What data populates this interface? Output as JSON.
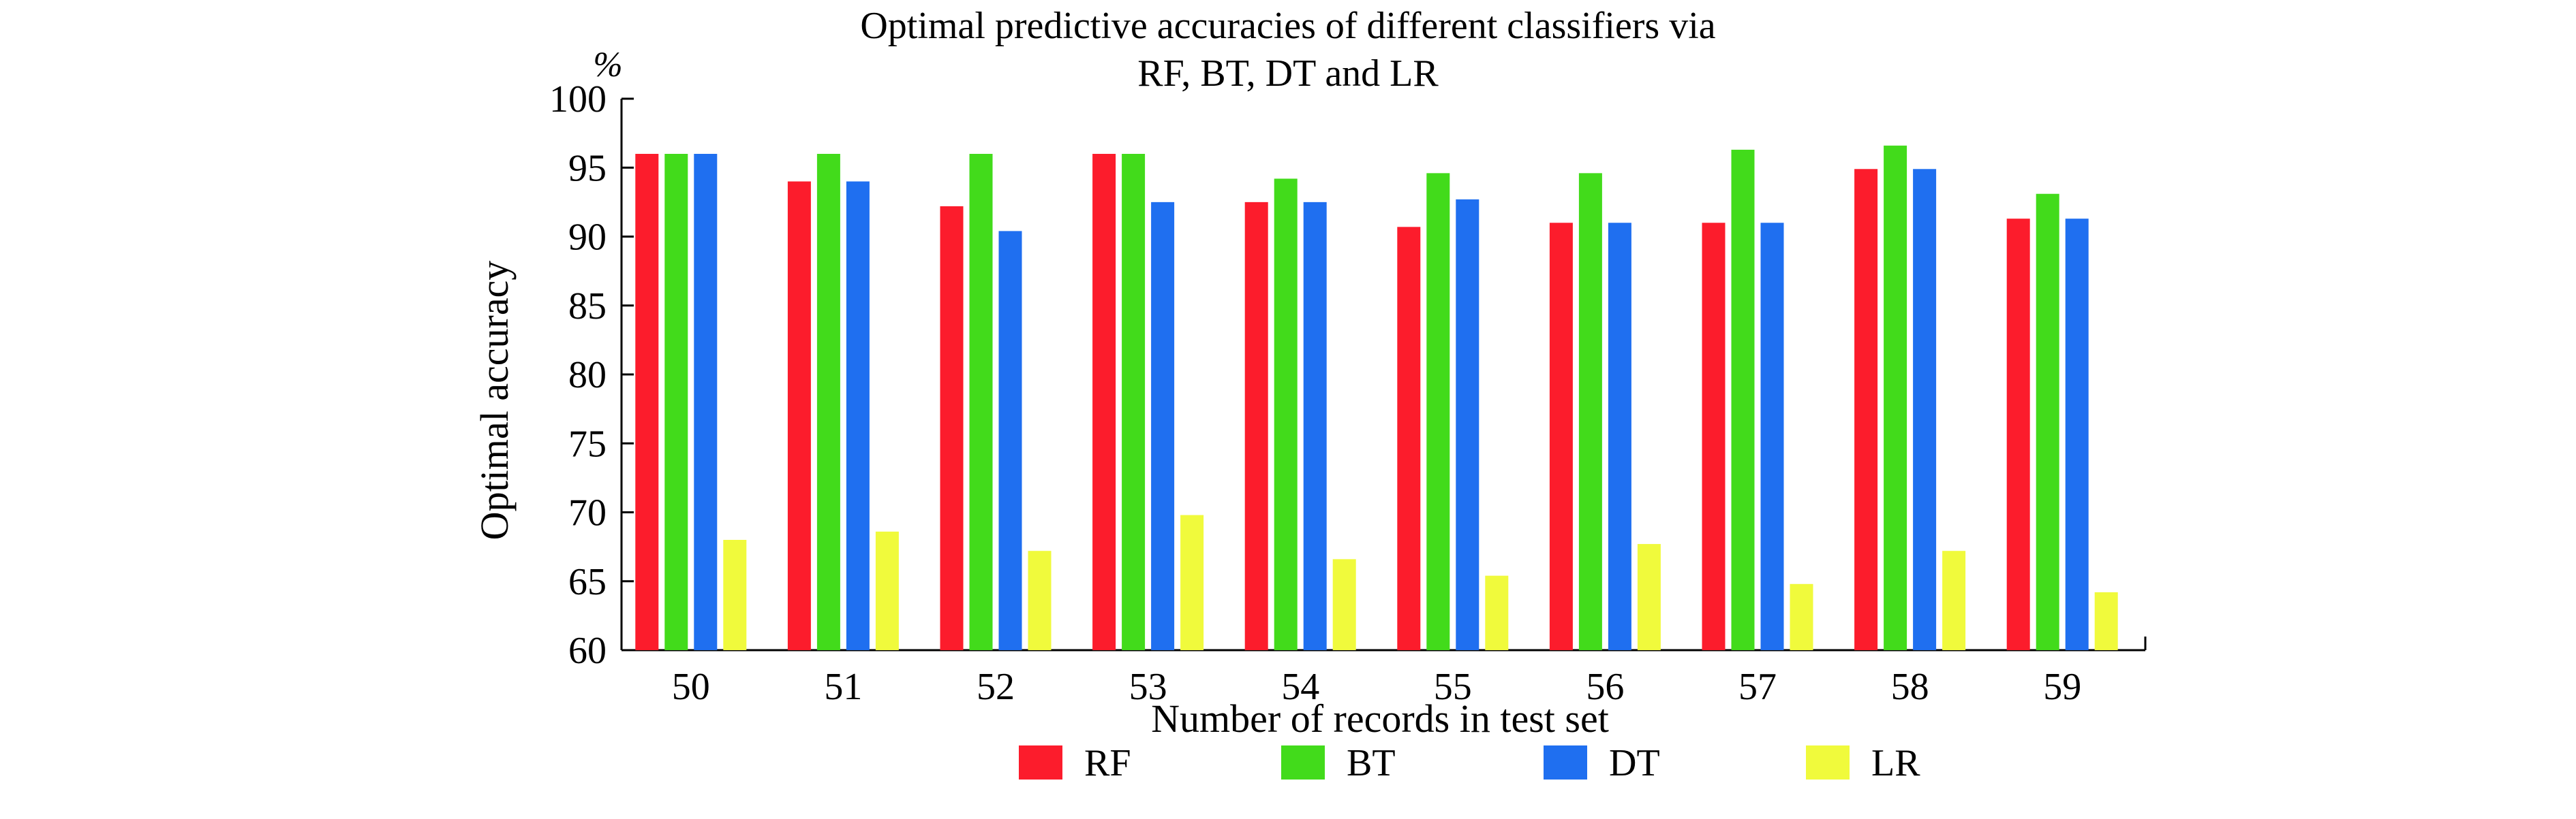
{
  "chart_data": {
    "type": "bar",
    "title_lines": [
      "Optimal predictive accuracies of different classifiers via",
      "RF, BT, DT and LR"
    ],
    "xlabel": "Number of records in test set",
    "ylabel": "Optimal accuracy",
    "y_unit": "%",
    "ylim": [
      60,
      100
    ],
    "yticks": [
      60,
      65,
      70,
      75,
      80,
      85,
      90,
      95,
      100
    ],
    "categories": [
      "50",
      "51",
      "52",
      "53",
      "54",
      "55",
      "56",
      "57",
      "58",
      "59"
    ],
    "series": [
      {
        "name": "RF",
        "color": "#fc1c2c",
        "values": [
          96.0,
          94.0,
          92.2,
          96.0,
          92.5,
          90.7,
          91.0,
          91.0,
          94.9,
          91.3
        ]
      },
      {
        "name": "BT",
        "color": "#42db1b",
        "values": [
          96.0,
          96.0,
          96.0,
          96.0,
          94.2,
          94.6,
          94.6,
          96.3,
          96.6,
          93.1
        ]
      },
      {
        "name": "DT",
        "color": "#1f6ff0",
        "values": [
          96.0,
          94.0,
          90.4,
          92.5,
          92.5,
          92.7,
          91.0,
          91.0,
          94.9,
          91.3
        ]
      },
      {
        "name": "LR",
        "color": "#f0fa3c",
        "values": [
          68.0,
          68.6,
          67.2,
          69.8,
          66.6,
          65.4,
          67.7,
          64.8,
          67.2,
          64.2
        ]
      }
    ],
    "legend_position": "bottom-center",
    "grid": false
  }
}
